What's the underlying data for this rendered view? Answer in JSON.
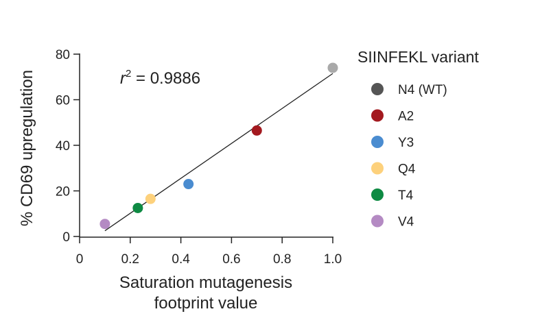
{
  "chart_data": {
    "type": "scatter",
    "xlabel_lines": [
      "Saturation mutagenesis",
      "footprint value"
    ],
    "ylabel": "% CD69 upregulation",
    "xlim": [
      0,
      1.0
    ],
    "ylim": [
      0,
      80
    ],
    "x_ticks": [
      "0",
      "0.2",
      "0.4",
      "0.6",
      "0.8",
      "1.0"
    ],
    "y_ticks": [
      "0",
      "20",
      "40",
      "60",
      "80"
    ],
    "x_tick_values": [
      0,
      0.2,
      0.4,
      0.6,
      0.8,
      1.0
    ],
    "y_tick_values": [
      0,
      20,
      40,
      60,
      80
    ],
    "annotation": {
      "r_symbol": "r",
      "exponent": "2",
      "text": " = 0.9886"
    },
    "fit_line": {
      "x": [
        0.1,
        1.0
      ],
      "y": [
        2.5,
        71.5
      ]
    },
    "legend_title": "SIINFEKL variant",
    "grid": false,
    "legend_position": "right",
    "points": [
      {
        "name": "N4 (WT)",
        "x": 1.0,
        "y": 74,
        "color": "#a9a9a9",
        "legend_color": "#555555"
      },
      {
        "name": "A2",
        "x": 0.7,
        "y": 46.5,
        "color": "#a3191f",
        "legend_color": "#a3191f"
      },
      {
        "name": "Y3",
        "x": 0.43,
        "y": 23,
        "color": "#4a8cd0",
        "legend_color": "#4a8cd0"
      },
      {
        "name": "Q4",
        "x": 0.28,
        "y": 16.5,
        "color": "#fdd17c",
        "legend_color": "#fdd17c"
      },
      {
        "name": "T4",
        "x": 0.23,
        "y": 12.5,
        "color": "#0e8a43",
        "legend_color": "#0e8a43"
      },
      {
        "name": "V4",
        "x": 0.1,
        "y": 5.5,
        "color": "#b48ac3",
        "legend_color": "#b48ac3"
      }
    ]
  }
}
